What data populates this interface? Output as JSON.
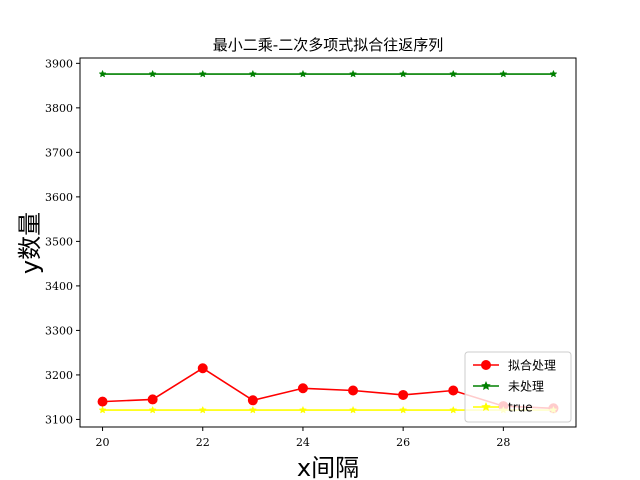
{
  "chart_data": {
    "type": "line",
    "title": "最小二乘-二次多项式拟合往返序列",
    "xlabel": "x间隔",
    "ylabel": "y数量",
    "x": [
      20,
      21,
      22,
      23,
      24,
      25,
      26,
      27,
      28,
      29
    ],
    "xlim": [
      19.55,
      29.45
    ],
    "ylim": [
      3083,
      3912
    ],
    "xticks": [
      20,
      22,
      24,
      26,
      28
    ],
    "yticks": [
      3100,
      3200,
      3300,
      3400,
      3500,
      3600,
      3700,
      3800,
      3900
    ],
    "grid": false,
    "legend_position": "lower-right",
    "series": [
      {
        "name": "拟合处理",
        "color": "#ff0000",
        "marker": "circle",
        "values": [
          3140,
          3145,
          3215,
          3143,
          3170,
          3165,
          3155,
          3165,
          3130,
          3125
        ]
      },
      {
        "name": "未处理",
        "color": "#008000",
        "marker": "star",
        "values": [
          3876,
          3876,
          3876,
          3876,
          3876,
          3876,
          3876,
          3876,
          3876,
          3876
        ]
      },
      {
        "name": "true",
        "color": "#ffff00",
        "marker": "star",
        "values": [
          3121,
          3121,
          3121,
          3121,
          3121,
          3121,
          3121,
          3121,
          3121,
          3121
        ]
      }
    ]
  }
}
